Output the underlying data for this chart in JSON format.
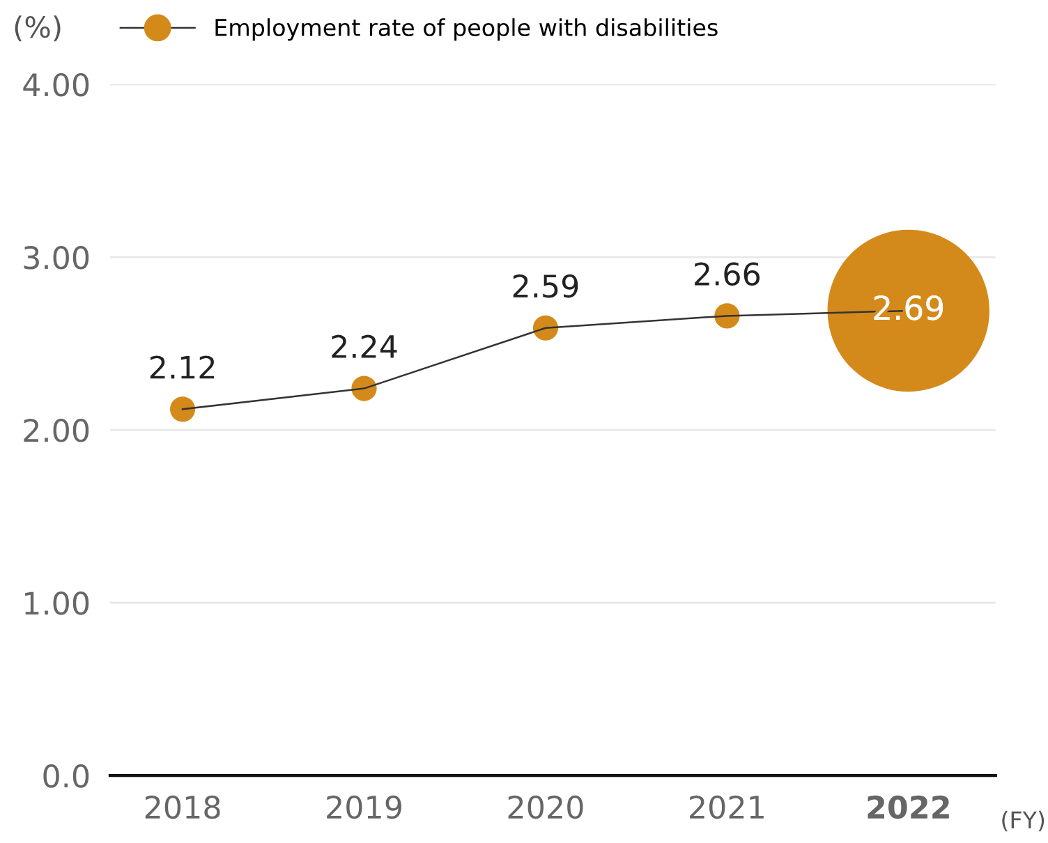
{
  "chart_data": {
    "type": "line",
    "ylabel": "(%)",
    "xlabel": "(FY)",
    "categories": [
      "2018",
      "2019",
      "2020",
      "2021",
      "2022"
    ],
    "series": [
      {
        "name": "Employment rate of people with disabilities",
        "color": "#d48a1a",
        "values": [
          2.12,
          2.24,
          2.59,
          2.66,
          2.69
        ],
        "value_labels": [
          "2.12",
          "2.24",
          "2.59",
          "2.66",
          null
        ]
      },
      {
        "type": "bubble",
        "color": "#d48a1a",
        "values": [
          null,
          null,
          null,
          null,
          2.69
        ],
        "sizes": [
          null,
          null,
          null,
          null,
          1
        ],
        "value_labels": [
          null,
          null,
          null,
          null,
          "2.69"
        ]
      }
    ],
    "ylim": [
      0,
      4.0
    ],
    "yticks": [
      {
        "value": 0,
        "label": "0.0"
      },
      {
        "value": 1,
        "label": "1.00"
      },
      {
        "value": 2,
        "label": "2.00"
      },
      {
        "value": 3,
        "label": "3.00"
      },
      {
        "value": 4,
        "label": "4.00"
      }
    ],
    "grid": "y",
    "legend": "top left",
    "marker": "circle",
    "line_style": "solid"
  }
}
